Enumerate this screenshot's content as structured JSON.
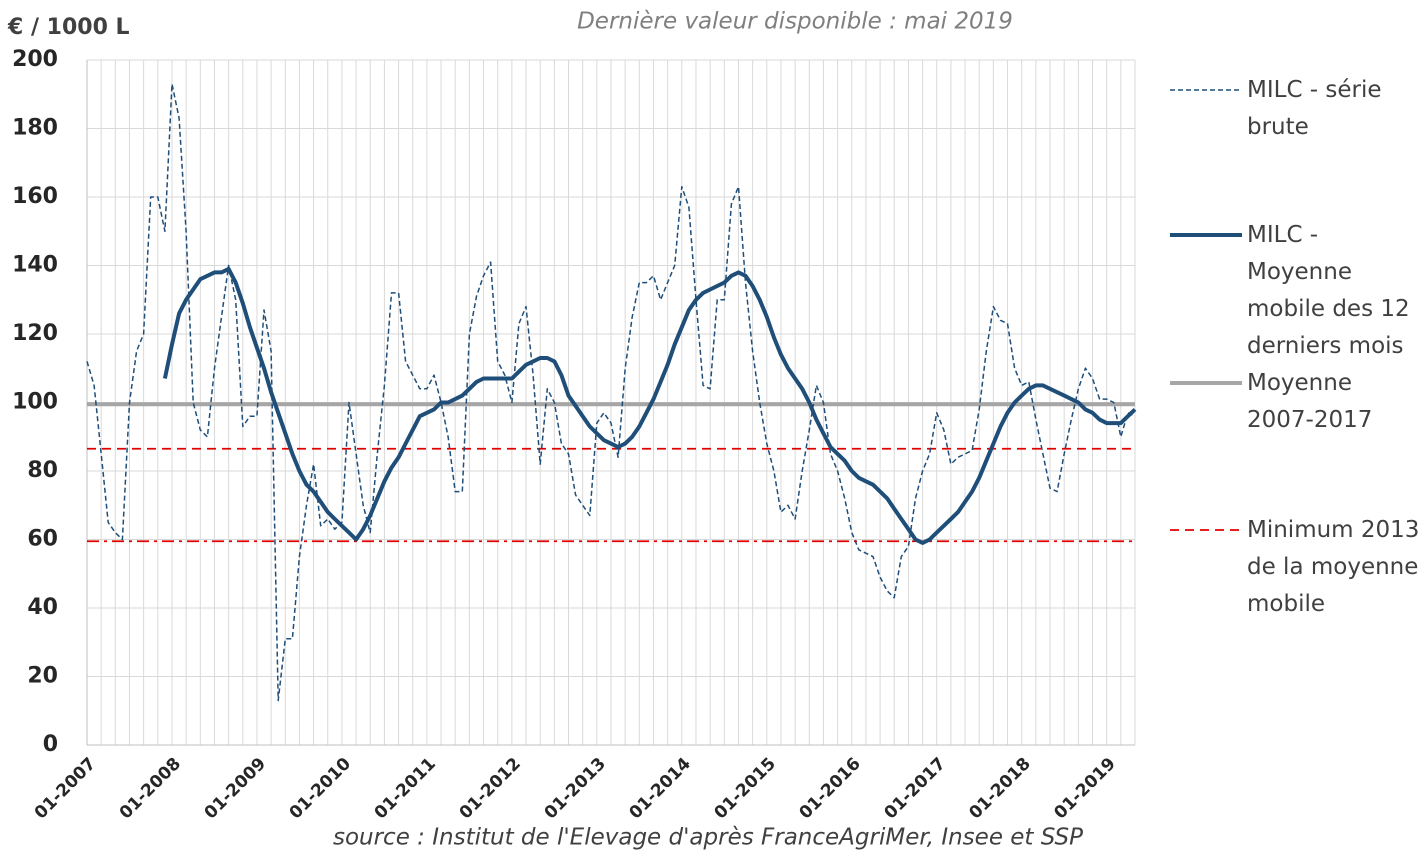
{
  "chart_data": {
    "type": "line",
    "y_label": "€ / 1000 L",
    "subtitle": "Dernière valeur disponible : mai 2019",
    "source": "source : Institut de l'Elevage d'après FranceAgriMer, Insee et SSP",
    "categories": [
      "01-2007",
      null,
      null,
      null,
      null,
      null,
      null,
      null,
      null,
      null,
      null,
      null,
      "01-2008",
      null,
      null,
      null,
      null,
      null,
      null,
      null,
      null,
      null,
      null,
      null,
      "01-2009",
      null,
      null,
      null,
      null,
      null,
      null,
      null,
      null,
      null,
      null,
      null,
      "01-2010",
      null,
      null,
      null,
      null,
      null,
      null,
      null,
      null,
      null,
      null,
      null,
      "01-2011",
      null,
      null,
      null,
      null,
      null,
      null,
      null,
      null,
      null,
      null,
      null,
      "01-2012",
      null,
      null,
      null,
      null,
      null,
      null,
      null,
      null,
      null,
      null,
      null,
      "01-2013",
      null,
      null,
      null,
      null,
      null,
      null,
      null,
      null,
      null,
      null,
      null,
      "01-2014",
      null,
      null,
      null,
      null,
      null,
      null,
      null,
      null,
      null,
      null,
      null,
      "01-2015",
      null,
      null,
      null,
      null,
      null,
      null,
      null,
      null,
      null,
      null,
      null,
      "01-2016",
      null,
      null,
      null,
      null,
      null,
      null,
      null,
      null,
      null,
      null,
      null,
      "01-2017",
      null,
      null,
      null,
      null,
      null,
      null,
      null,
      null,
      null,
      null,
      null,
      "01-2018",
      null,
      null,
      null,
      null,
      null,
      null,
      null,
      null,
      null,
      null,
      null,
      "01-2019",
      null,
      null,
      null,
      null
    ],
    "series": [
      {
        "name": "MILC - série brute",
        "color": "#1f4e79",
        "style": "dashed",
        "width": 1.5,
        "values": [
          112,
          105,
          85,
          65,
          62,
          60,
          100,
          115,
          120,
          160,
          160,
          150,
          193,
          183,
          150,
          100,
          92,
          90,
          110,
          125,
          140,
          130,
          93,
          96,
          96,
          127,
          115,
          13,
          31,
          31,
          55,
          70,
          82,
          64,
          66,
          63,
          65,
          100,
          85,
          70,
          62,
          85,
          105,
          132,
          132,
          112,
          108,
          104,
          104,
          108,
          100,
          90,
          74,
          74,
          120,
          131,
          137,
          141,
          112,
          108,
          100,
          123,
          128,
          108,
          82,
          104,
          100,
          88,
          85,
          73,
          70,
          67,
          94,
          97,
          94,
          84,
          110,
          125,
          135,
          135,
          137,
          130,
          135,
          140,
          163,
          157,
          130,
          105,
          104,
          130,
          130,
          158,
          163,
          135,
          115,
          100,
          88,
          80,
          68,
          70,
          66,
          80,
          92,
          105,
          100,
          85,
          80,
          72,
          62,
          57,
          56,
          55,
          49,
          45,
          43,
          55,
          58,
          72,
          80,
          85,
          97,
          92,
          82,
          84,
          85,
          86,
          98,
          115,
          128,
          124,
          123,
          110,
          105,
          106,
          95,
          85,
          75,
          74,
          85,
          95,
          104,
          110,
          107,
          101,
          101,
          100,
          90,
          97,
          96
        ]
      },
      {
        "name": "MILC - Moyenne mobile des 12 derniers mois",
        "color": "#1f4e79",
        "style": "solid",
        "width": 4,
        "values": [
          null,
          null,
          null,
          null,
          null,
          null,
          null,
          null,
          null,
          null,
          null,
          107,
          117,
          126,
          130,
          133,
          136,
          137,
          138,
          138,
          139,
          135,
          129,
          122,
          116,
          110,
          103,
          97,
          91,
          85,
          80,
          76,
          74,
          71,
          68,
          66,
          64,
          62,
          60,
          63,
          67,
          72,
          77,
          81,
          84,
          88,
          92,
          96,
          97,
          98,
          100,
          100,
          101,
          102,
          104,
          106,
          107,
          107,
          107,
          107,
          107,
          109,
          111,
          112,
          113,
          113,
          112,
          108,
          102,
          99,
          96,
          93,
          91,
          89,
          88,
          87,
          88,
          90,
          93,
          97,
          101,
          106,
          111,
          117,
          122,
          127,
          130,
          132,
          133,
          134,
          135,
          137,
          138,
          137,
          134,
          130,
          125,
          119,
          114,
          110,
          107,
          104,
          100,
          95,
          91,
          87,
          85,
          83,
          80,
          78,
          77,
          76,
          74,
          72,
          69,
          66,
          63,
          60,
          59,
          60,
          62,
          64,
          66,
          68,
          71,
          74,
          78,
          83,
          88,
          93,
          97,
          100,
          102,
          104,
          105,
          105,
          104,
          103,
          102,
          101,
          100,
          98,
          97,
          95,
          94,
          94,
          94,
          96,
          98
        ]
      }
    ],
    "reference_lines": [
      {
        "name": "Moyenne 2007-2017",
        "value": 99.5,
        "color": "#a6a6a6",
        "style": "solid",
        "width": 4
      },
      {
        "name": "Minimum 2013  de la moyenne mobile",
        "value": 86.5,
        "color": "#e00000",
        "style": "dashed",
        "width": 1.8
      },
      {
        "value": 59.5,
        "color": "#e00000",
        "style": "dashdot",
        "width": 1.8
      }
    ],
    "ylim": [
      0,
      200
    ],
    "yticks": [
      0,
      20,
      40,
      60,
      80,
      100,
      120,
      140,
      160,
      180,
      200
    ],
    "grid": true
  }
}
